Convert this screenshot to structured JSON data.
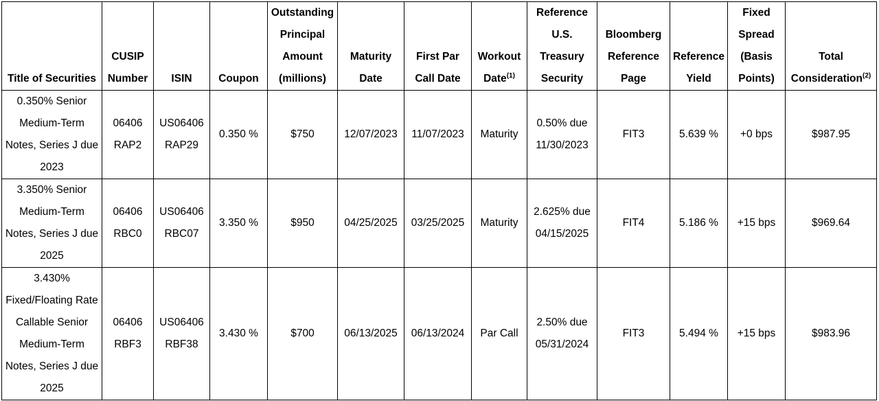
{
  "columns": {
    "title": "Title of Securities",
    "cusip": "CUSIP Number",
    "isin": "ISIN",
    "coupon": "Coupon",
    "principal": "Outstanding Principal Amount (millions)",
    "maturity": "Maturity Date",
    "first_par_call": "First Par Call Date",
    "workout": "Workout Date",
    "workout_note": "(1)",
    "treasury": "Reference U.S. Treasury Security",
    "bloomberg": "Bloomberg Reference Page",
    "ref_yield": "Reference Yield",
    "spread": "Fixed Spread (Basis Points)",
    "total": "Total Consideration",
    "total_note": "(2)"
  },
  "rows": [
    {
      "title": "0.350% Senior Medium-Term Notes, Series J due 2023",
      "cusip": "06406 RAP2",
      "isin": "US06406 RAP29",
      "coupon": "0.350 %",
      "principal": "$750",
      "maturity": "12/07/2023",
      "first_par_call": "11/07/2023",
      "workout": "Maturity",
      "treasury": "0.50% due 11/30/2023",
      "bloomberg": "FIT3",
      "ref_yield": "5.639 %",
      "spread": "+0 bps",
      "total": "$987.95"
    },
    {
      "title": "3.350% Senior Medium-Term Notes, Series J due 2025",
      "cusip": "06406 RBC0",
      "isin": "US06406 RBC07",
      "coupon": "3.350 %",
      "principal": "$950",
      "maturity": "04/25/2025",
      "first_par_call": "03/25/2025",
      "workout": "Maturity",
      "treasury": "2.625% due 04/15/2025",
      "bloomberg": "FIT4",
      "ref_yield": "5.186 %",
      "spread": "+15 bps",
      "total": "$969.64"
    },
    {
      "title": "3.430% Fixed/Floating Rate Callable Senior Medium-Term Notes, Series J due 2025",
      "cusip": "06406 RBF3",
      "isin": "US06406 RBF38",
      "coupon": "3.430 %",
      "principal": "$700",
      "maturity": "06/13/2025",
      "first_par_call": "06/13/2024",
      "workout": "Par Call",
      "treasury": "2.50% due 05/31/2024",
      "bloomberg": "FIT3",
      "ref_yield": "5.494 %",
      "spread": "+15 bps",
      "total": "$983.96"
    }
  ]
}
